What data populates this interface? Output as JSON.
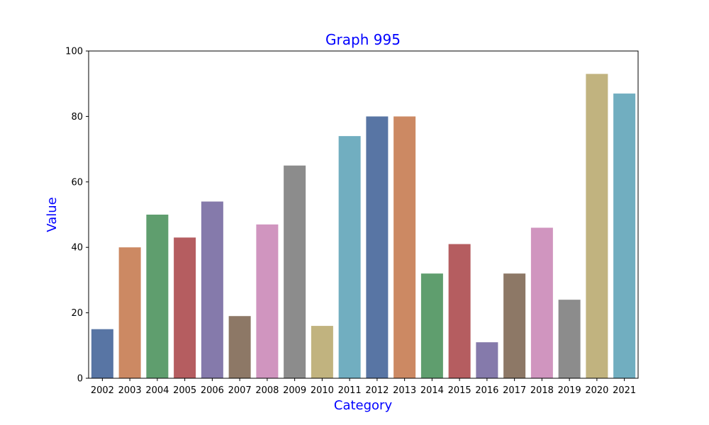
{
  "chart_data": {
    "type": "bar",
    "title": "Graph 995",
    "xlabel": "Category",
    "ylabel": "Value",
    "categories": [
      "2002",
      "2003",
      "2004",
      "2005",
      "2006",
      "2007",
      "2008",
      "2009",
      "2010",
      "2011",
      "2012",
      "2013",
      "2014",
      "2015",
      "2016",
      "2017",
      "2018",
      "2019",
      "2020",
      "2021"
    ],
    "values": [
      15,
      40,
      50,
      43,
      54,
      19,
      47,
      65,
      16,
      74,
      80,
      80,
      32,
      41,
      11,
      32,
      46,
      24,
      93,
      87
    ],
    "colors": [
      "#5875a4",
      "#cc8963",
      "#5f9e6e",
      "#b55d60",
      "#857aab",
      "#8d7866",
      "#d095bf",
      "#8c8c8c",
      "#c1b37f",
      "#71aec0",
      "#5875a4",
      "#cc8963",
      "#5f9e6e",
      "#b55d60",
      "#857aab",
      "#8d7866",
      "#d095bf",
      "#8c8c8c",
      "#c1b37f",
      "#71aec0"
    ],
    "ylim": [
      0,
      100
    ],
    "yticks": [
      "0",
      "20",
      "40",
      "60",
      "80",
      "100"
    ],
    "grid": false,
    "label_color": "#0000ff"
  }
}
